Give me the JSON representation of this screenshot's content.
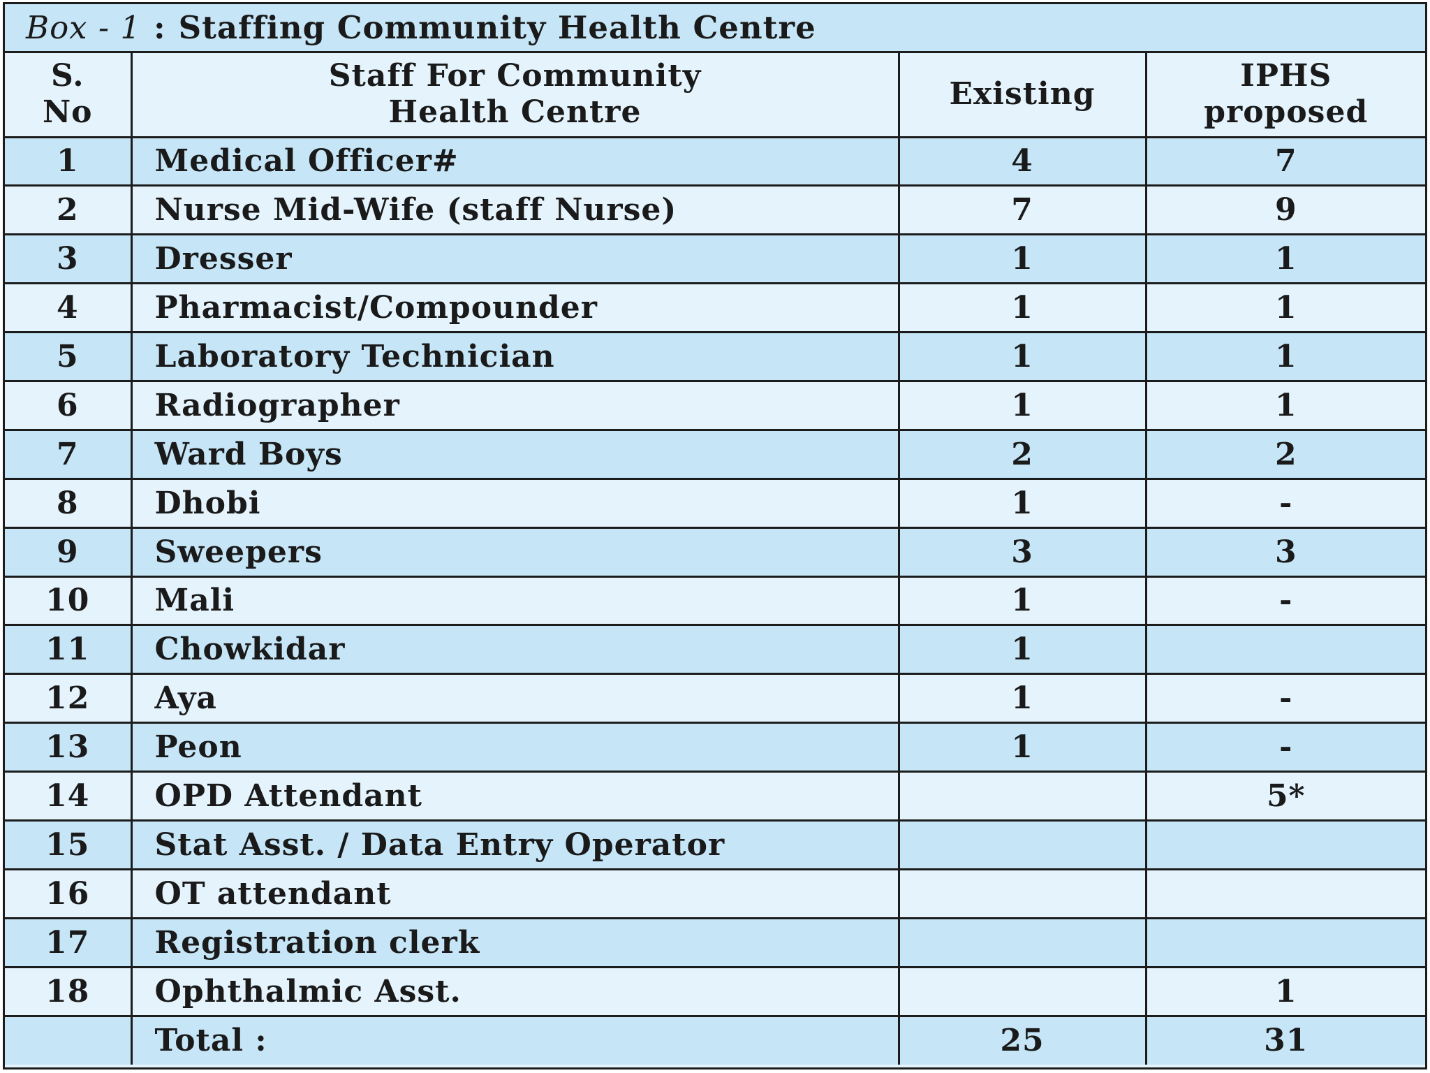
{
  "caption": {
    "box_label": "Box - 1",
    "separator": ":",
    "title": "Staffing Community Health Centre"
  },
  "columns": {
    "sno_line1": "S.",
    "sno_line2": "No",
    "staff_line1": "Staff For Community",
    "staff_line2": "Health Centre",
    "existing": "Existing",
    "iphs_line1": "IPHS",
    "iphs_line2": "proposed"
  },
  "rows": [
    {
      "sno": "1",
      "staff": "Medical Officer#",
      "existing": "4",
      "iphs": "7"
    },
    {
      "sno": "2",
      "staff": "Nurse Mid-Wife (staff Nurse)",
      "existing": "7",
      "iphs": "9"
    },
    {
      "sno": "3",
      "staff": "Dresser",
      "existing": "1",
      "iphs": "1"
    },
    {
      "sno": "4",
      "staff": "Pharmacist/Compounder",
      "existing": "1",
      "iphs": "1"
    },
    {
      "sno": "5",
      "staff": "Laboratory Technician",
      "existing": "1",
      "iphs": "1"
    },
    {
      "sno": "6",
      "staff": "Radiographer",
      "existing": "1",
      "iphs": "1"
    },
    {
      "sno": "7",
      "staff": "Ward Boys",
      "existing": "2",
      "iphs": "2"
    },
    {
      "sno": "8",
      "staff": "Dhobi",
      "existing": "1",
      "iphs": "-"
    },
    {
      "sno": "9",
      "staff": "Sweepers",
      "existing": "3",
      "iphs": "3"
    },
    {
      "sno": "10",
      "staff": "Mali",
      "existing": "1",
      "iphs": "-"
    },
    {
      "sno": "11",
      "staff": "Chowkidar",
      "existing": "1",
      "iphs": ""
    },
    {
      "sno": "12",
      "staff": "Aya",
      "existing": "1",
      "iphs": "-"
    },
    {
      "sno": "13",
      "staff": "Peon",
      "existing": "1",
      "iphs": "-"
    },
    {
      "sno": "14",
      "staff": "OPD Attendant",
      "existing": "",
      "iphs": "5*"
    },
    {
      "sno": "15",
      "staff": "Stat Asst. / Data Entry Operator",
      "existing": "",
      "iphs": ""
    },
    {
      "sno": "16",
      "staff": "OT attendant",
      "existing": "",
      "iphs": ""
    },
    {
      "sno": "17",
      "staff": "Registration clerk",
      "existing": "",
      "iphs": ""
    },
    {
      "sno": "18",
      "staff": "Ophthalmic Asst.",
      "existing": "",
      "iphs": "1"
    }
  ],
  "total": {
    "label": "Total :",
    "existing": "25",
    "iphs": "31"
  }
}
